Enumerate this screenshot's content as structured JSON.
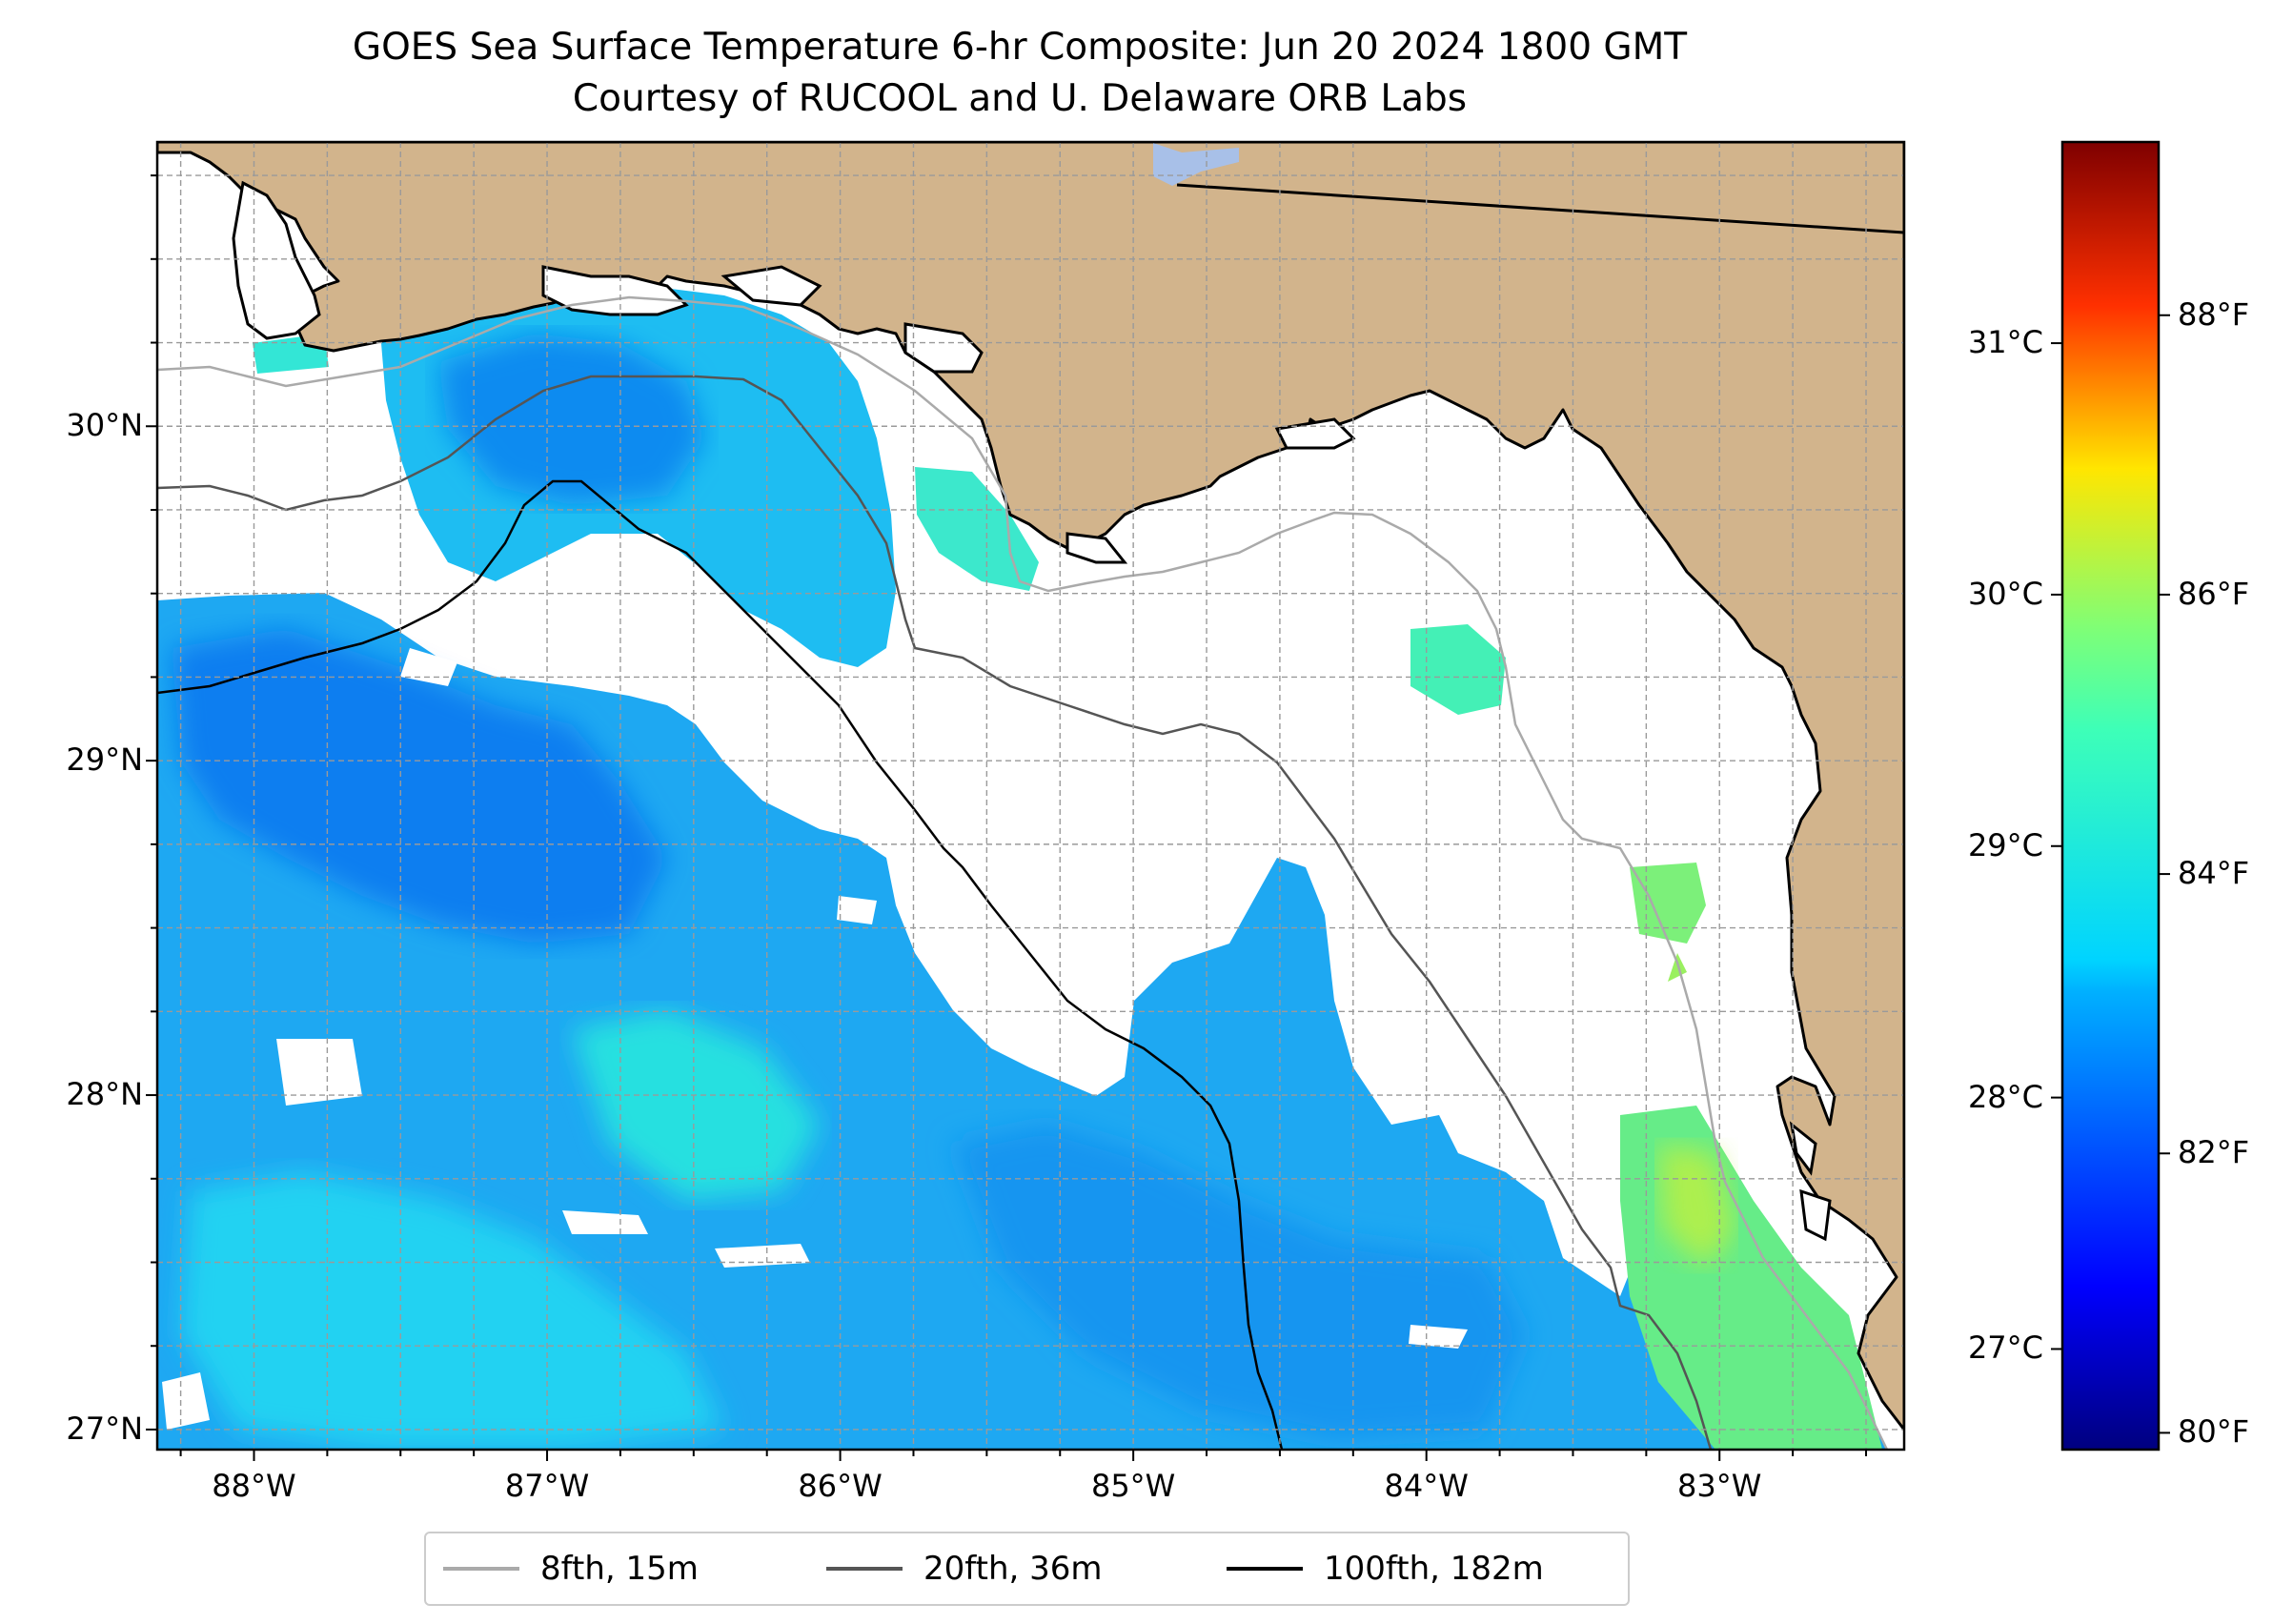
{
  "title": {
    "line1": "GOES Sea Surface Temperature 6-hr Composite: Jun 20 2024 1800 GMT",
    "line2": "Courtesy of RUCOOL and U. Delaware ORB Labs"
  },
  "map": {
    "lon_range": [
      -88.33,
      -82.37
    ],
    "lat_range": [
      26.94,
      30.85
    ],
    "land_color": "#d2b48c",
    "no_data_color": "#ffffff",
    "gridlines": true,
    "lat_ticks": [
      {
        "value": 27,
        "label": "27°N"
      },
      {
        "value": 28,
        "label": "28°N"
      },
      {
        "value": 29,
        "label": "29°N"
      },
      {
        "value": 30,
        "label": "30°N"
      }
    ],
    "lon_ticks": [
      {
        "value": -88,
        "label": "88°W"
      },
      {
        "value": -87,
        "label": "87°W"
      },
      {
        "value": -86,
        "label": "86°W"
      },
      {
        "value": -85,
        "label": "85°W"
      },
      {
        "value": -84,
        "label": "84°W"
      },
      {
        "value": -83,
        "label": "83°W"
      }
    ]
  },
  "colorbar": {
    "colormap": "jet",
    "range_c": [
      26.6,
      31.8
    ],
    "celsius_ticks": [
      {
        "value": 27,
        "label": "27°C"
      },
      {
        "value": 28,
        "label": "28°C"
      },
      {
        "value": 29,
        "label": "29°C"
      },
      {
        "value": 30,
        "label": "30°C"
      },
      {
        "value": 31,
        "label": "31°C"
      }
    ],
    "fahrenheit_ticks": [
      {
        "value": 80,
        "label": "80°F"
      },
      {
        "value": 82,
        "label": "82°F"
      },
      {
        "value": 84,
        "label": "84°F"
      },
      {
        "value": 86,
        "label": "86°F"
      },
      {
        "value": 88,
        "label": "88°F"
      }
    ]
  },
  "legend": {
    "placement": "bottom-center",
    "items": [
      {
        "label": "8fth, 15m",
        "color": "#aaaaaa"
      },
      {
        "label": "20fth, 36m",
        "color": "#555555"
      },
      {
        "label": "100fth, 182m",
        "color": "#000000"
      }
    ]
  }
}
